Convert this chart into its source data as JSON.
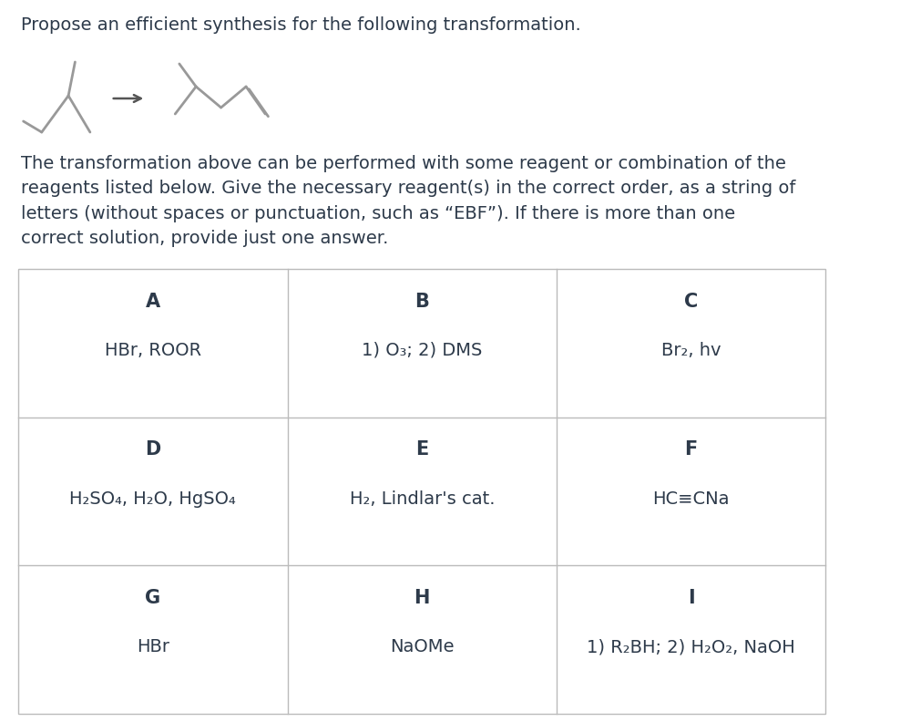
{
  "title_text": "Propose an efficient synthesis for the following transformation.",
  "body_text": "The transformation above can be performed with some reagent or combination of the\nreagents listed below. Give the necessary reagent(s) in the correct order, as a string of\nletters (without spaces or punctuation, such as “EBF”). If there is more than one\ncorrect solution, provide just one answer.",
  "sections": [
    {
      "letters": [
        "A",
        "B",
        "C"
      ],
      "contents": [
        "HBr, ROOR",
        "1) O₃; 2) DMS",
        "Br₂, hv"
      ]
    },
    {
      "letters": [
        "D",
        "E",
        "F"
      ],
      "contents": [
        "H₂SO₄, H₂O, HgSO₄",
        "H₂, Lindlar's cat.",
        "HC≡CNa"
      ]
    },
    {
      "letters": [
        "G",
        "H",
        "I"
      ],
      "contents": [
        "HBr",
        "NaOMe",
        "1) R₂BH; 2) H₂O₂, NaOH"
      ]
    }
  ],
  "bg_color": "#ffffff",
  "text_color": "#2d3a4a",
  "border_color": "#bbbbbb",
  "title_fontsize": 14.0,
  "body_fontsize": 14.0,
  "table_header_fontsize": 15,
  "table_cell_fontsize": 14.0,
  "mol_color": "#999999",
  "mol_lw": 2.0
}
